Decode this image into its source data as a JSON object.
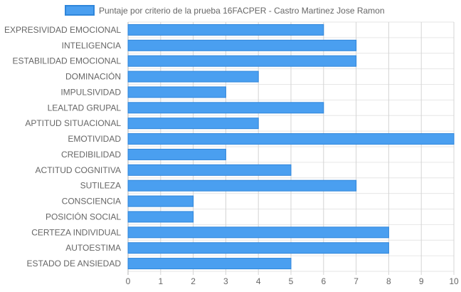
{
  "chart_data": {
    "type": "bar",
    "orientation": "horizontal",
    "categories": [
      "EXPRESIVIDAD EMOCIONAL",
      "INTELIGENCIA",
      "ESTABILIDAD EMOCIONAL",
      "DOMINACIÓN",
      "IMPULSIVIDAD",
      "LEALTAD GRUPAL",
      "APTITUD SITUACIONAL",
      "EMOTIVIDAD",
      "CREDIBILIDAD",
      "ACTITUD COGNITIVA",
      "SUTILEZA",
      "CONSCIENCIA",
      "POSICIÓN SOCIAL",
      "CERTEZA INDIVIDUAL",
      "AUTOESTIMA",
      "ESTADO DE ANSIEDAD"
    ],
    "series": [
      {
        "name": "Puntaje por criterio de la prueba 16FACPER - Castro Martinez Jose Ramon",
        "values": [
          6,
          7,
          7,
          4,
          3,
          6,
          4,
          10,
          3,
          5,
          7,
          2,
          2,
          8,
          8,
          5
        ],
        "color": "#4a9ff0",
        "border_color": "#2f86db"
      }
    ],
    "xlim": [
      0,
      10
    ],
    "xticks": [
      "0",
      "1",
      "2",
      "3",
      "4",
      "5",
      "6",
      "7",
      "8",
      "9",
      "10"
    ],
    "grid": true,
    "legend_position": "top"
  }
}
